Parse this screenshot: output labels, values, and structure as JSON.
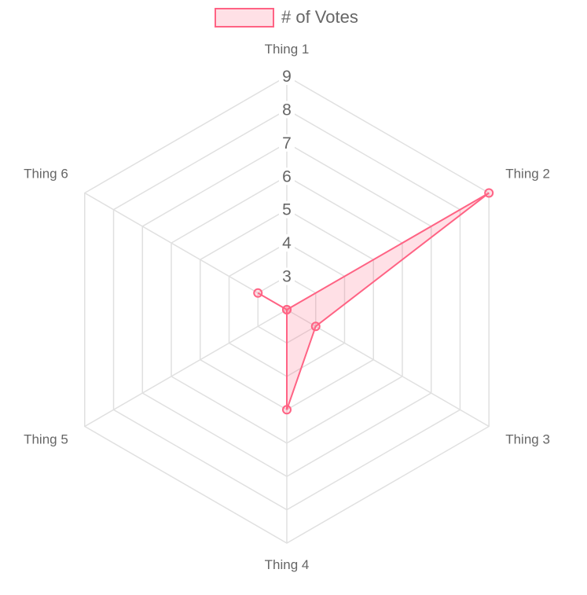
{
  "chart_data": {
    "type": "radar",
    "labels": [
      "Thing 1",
      "Thing 2",
      "Thing 3",
      "Thing 4",
      "Thing 5",
      "Thing 6"
    ],
    "series": [
      {
        "name": "# of Votes",
        "values": [
          2,
          9,
          3,
          5,
          2,
          3
        ]
      }
    ],
    "r_axis": {
      "min": 2,
      "max": 9,
      "ticks": [
        "3",
        "4",
        "5",
        "6",
        "7",
        "8",
        "9"
      ]
    },
    "legend_position": "top",
    "grid": true,
    "colors": {
      "series_border": "#ff6384",
      "series_fill": "rgba(255,99,132,0.2)",
      "grid": "#e0e0e0",
      "text": "#666666"
    }
  }
}
